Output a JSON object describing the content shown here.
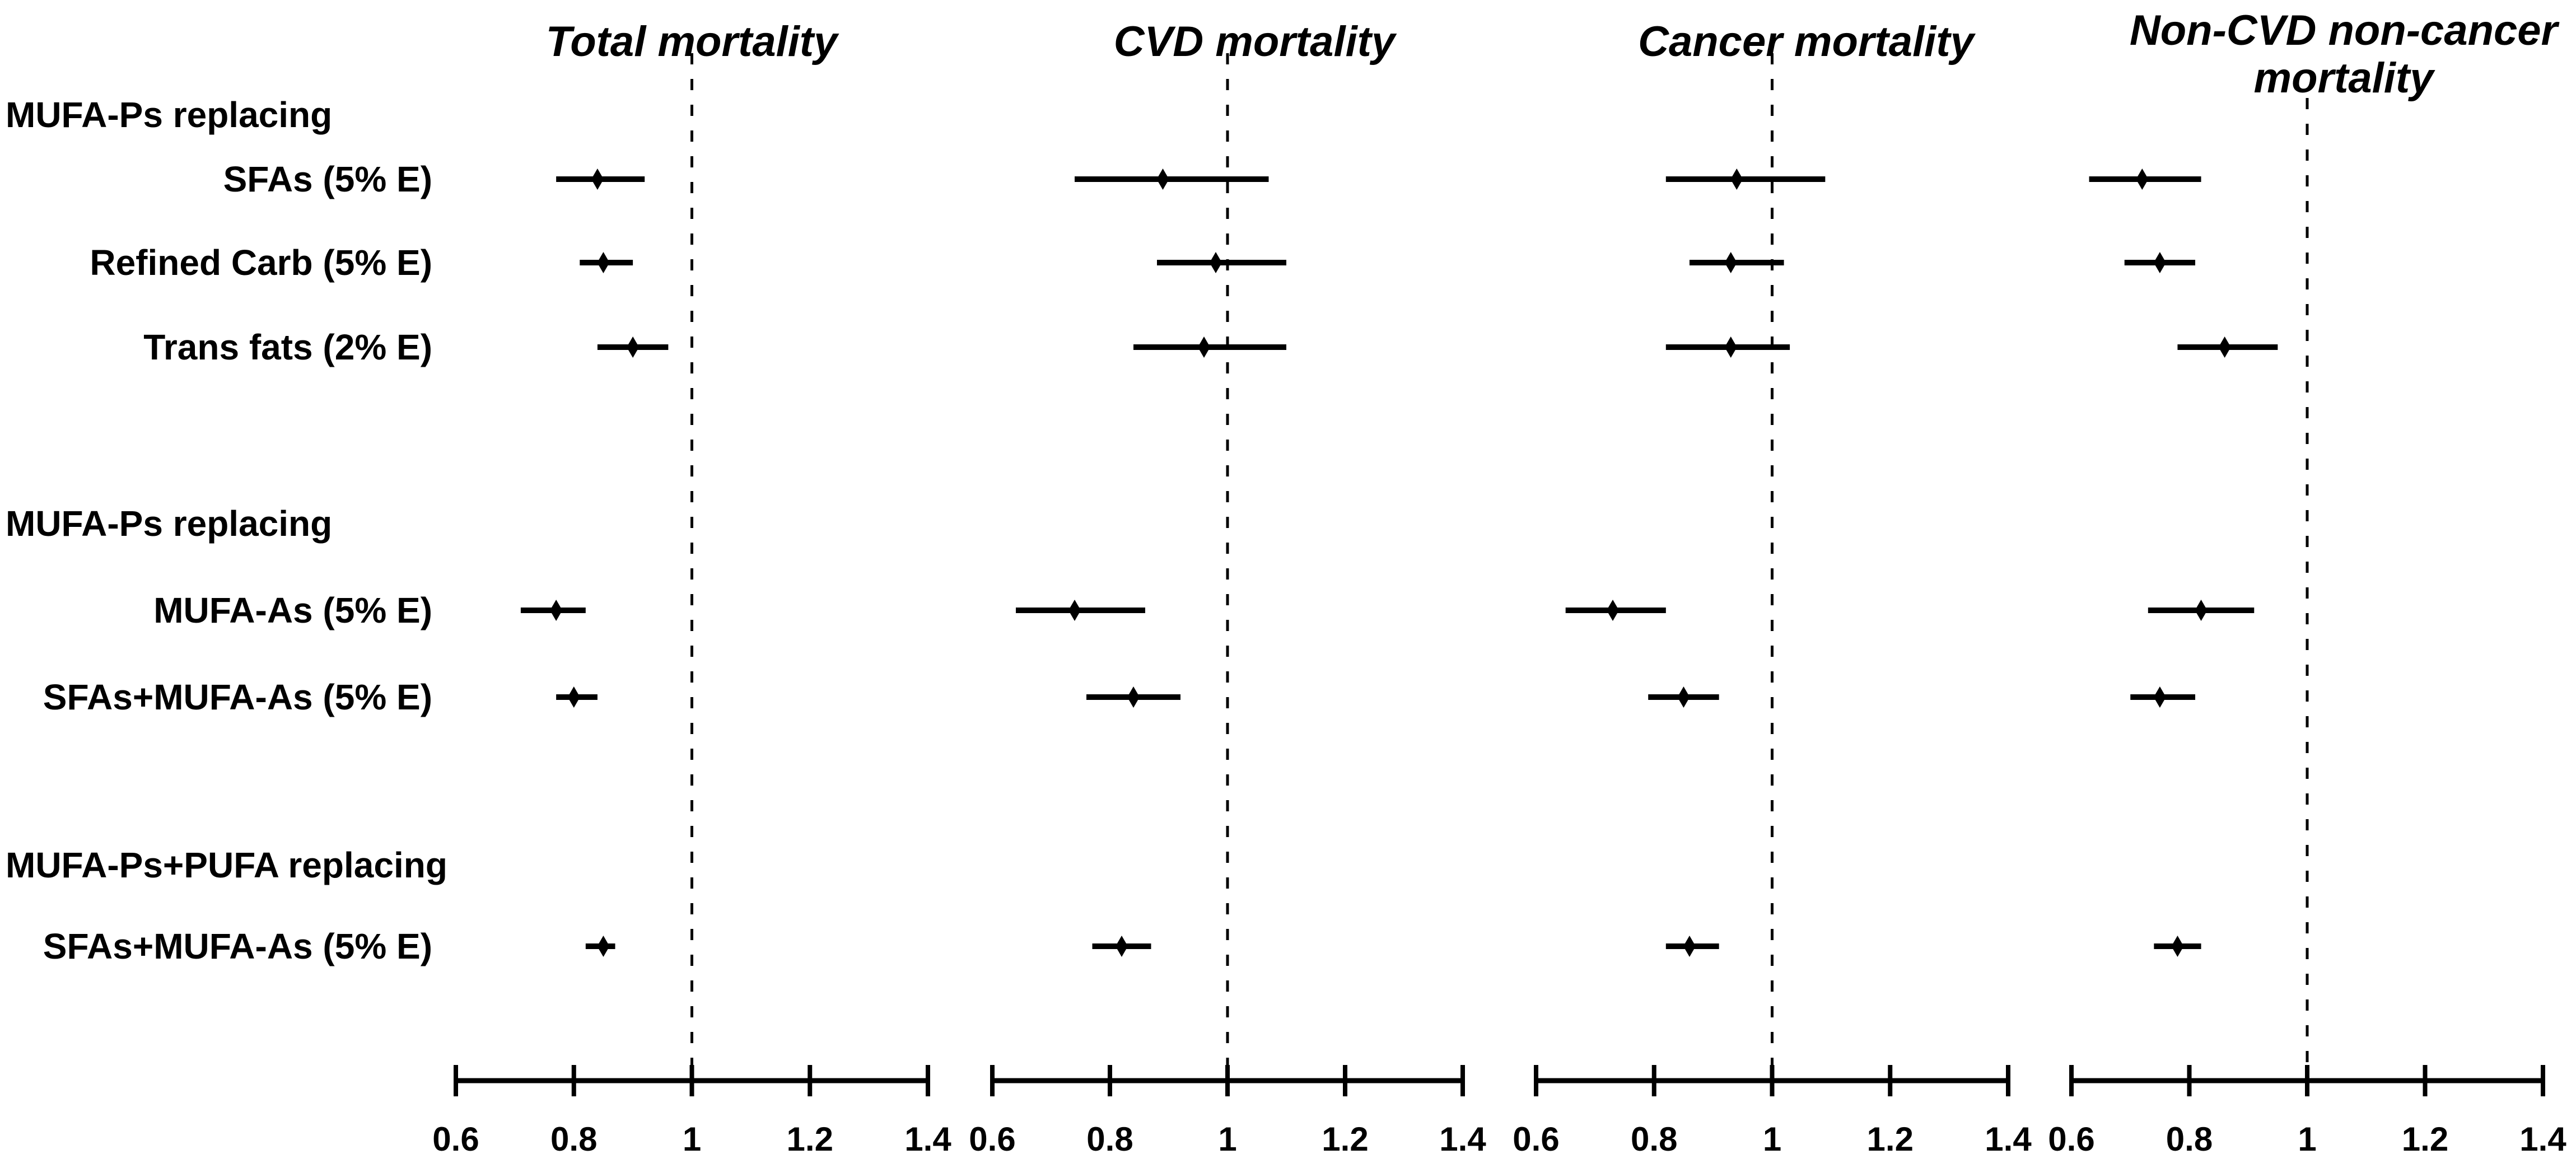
{
  "figure": {
    "background_color": "#ffffff",
    "ink_color": "#000000",
    "groups": [
      {
        "header": "MUFA-Ps replacing",
        "items": [
          "SFAs (5% E)",
          "Refined Carb (5% E)",
          "Trans fats (2% E)"
        ]
      },
      {
        "header": "MUFA-Ps replacing",
        "items": [
          "MUFA-As (5% E)",
          "SFAs+MUFA-As (5% E)"
        ]
      },
      {
        "header": "MUFA-Ps+PUFA replacing",
        "items": [
          "SFAs+MUFA-As (5% E)"
        ]
      }
    ]
  },
  "chart_data": [
    {
      "type": "forest",
      "title": "Total mortality",
      "title_lines": [
        "Total mortality"
      ],
      "xlim": [
        0.6,
        1.4
      ],
      "x_ticks": [
        "0.6",
        "0.8",
        "1",
        "1.2",
        "1.4"
      ],
      "reference_line": 1,
      "rows": [
        {
          "label": "SFAs (5% E)",
          "est": 0.84,
          "lo": 0.77,
          "hi": 0.92
        },
        {
          "label": "Refined Carb (5% E)",
          "est": 0.85,
          "lo": 0.81,
          "hi": 0.9
        },
        {
          "label": "Trans fats (2% E)",
          "est": 0.9,
          "lo": 0.84,
          "hi": 0.96
        },
        {
          "label": "MUFA-As (5% E)",
          "est": 0.77,
          "lo": 0.71,
          "hi": 0.82
        },
        {
          "label": "SFAs+MUFA-As (5% E)",
          "est": 0.8,
          "lo": 0.77,
          "hi": 0.84
        },
        {
          "label": "SFAs+MUFA-As (5% E)",
          "est": 0.85,
          "lo": 0.82,
          "hi": 0.87
        }
      ]
    },
    {
      "type": "forest",
      "title": "CVD mortality",
      "title_lines": [
        "CVD mortality"
      ],
      "xlim": [
        0.6,
        1.4
      ],
      "x_ticks": [
        "0.6",
        "0.8",
        "1",
        "1.2",
        "1.4"
      ],
      "reference_line": 1,
      "rows": [
        {
          "label": "SFAs (5% E)",
          "est": 0.89,
          "lo": 0.74,
          "hi": 1.07
        },
        {
          "label": "Refined Carb (5% E)",
          "est": 0.98,
          "lo": 0.88,
          "hi": 1.1
        },
        {
          "label": "Trans fats (2% E)",
          "est": 0.96,
          "lo": 0.84,
          "hi": 1.1
        },
        {
          "label": "MUFA-As (5% E)",
          "est": 0.74,
          "lo": 0.64,
          "hi": 0.86
        },
        {
          "label": "SFAs+MUFA-As (5% E)",
          "est": 0.84,
          "lo": 0.76,
          "hi": 0.92
        },
        {
          "label": "SFAs+MUFA-As (5% E)",
          "est": 0.82,
          "lo": 0.77,
          "hi": 0.87
        }
      ]
    },
    {
      "type": "forest",
      "title": "Cancer mortality",
      "title_lines": [
        "Cancer mortality"
      ],
      "xlim": [
        0.6,
        1.4
      ],
      "x_ticks": [
        "0.6",
        "0.8",
        "1",
        "1.2",
        "1.4"
      ],
      "reference_line": 1,
      "rows": [
        {
          "label": "SFAs (5% E)",
          "est": 0.94,
          "lo": 0.82,
          "hi": 1.09
        },
        {
          "label": "Refined Carb (5% E)",
          "est": 0.93,
          "lo": 0.86,
          "hi": 1.02
        },
        {
          "label": "Trans fats (2% E)",
          "est": 0.93,
          "lo": 0.82,
          "hi": 1.03
        },
        {
          "label": "MUFA-As (5% E)",
          "est": 0.73,
          "lo": 0.65,
          "hi": 0.82
        },
        {
          "label": "SFAs+MUFA-As (5% E)",
          "est": 0.85,
          "lo": 0.79,
          "hi": 0.91
        },
        {
          "label": "SFAs+MUFA-As (5% E)",
          "est": 0.86,
          "lo": 0.82,
          "hi": 0.91
        }
      ]
    },
    {
      "type": "forest",
      "title": "Non-CVD non-cancer mortality",
      "title_lines": [
        "Non-CVD non-cancer",
        "mortality"
      ],
      "xlim": [
        0.6,
        1.4
      ],
      "x_ticks": [
        "0.6",
        "0.8",
        "1",
        "1.2",
        "1.4"
      ],
      "reference_line": 1,
      "rows": [
        {
          "label": "SFAs (5% E)",
          "est": 0.72,
          "lo": 0.63,
          "hi": 0.82
        },
        {
          "label": "Refined Carb (5% E)",
          "est": 0.75,
          "lo": 0.69,
          "hi": 0.81
        },
        {
          "label": "Trans fats (2% E)",
          "est": 0.86,
          "lo": 0.78,
          "hi": 0.95
        },
        {
          "label": "MUFA-As (5% E)",
          "est": 0.82,
          "lo": 0.73,
          "hi": 0.91
        },
        {
          "label": "SFAs+MUFA-As (5% E)",
          "est": 0.75,
          "lo": 0.7,
          "hi": 0.81
        },
        {
          "label": "SFAs+MUFA-As (5% E)",
          "est": 0.78,
          "lo": 0.74,
          "hi": 0.82
        }
      ]
    }
  ]
}
